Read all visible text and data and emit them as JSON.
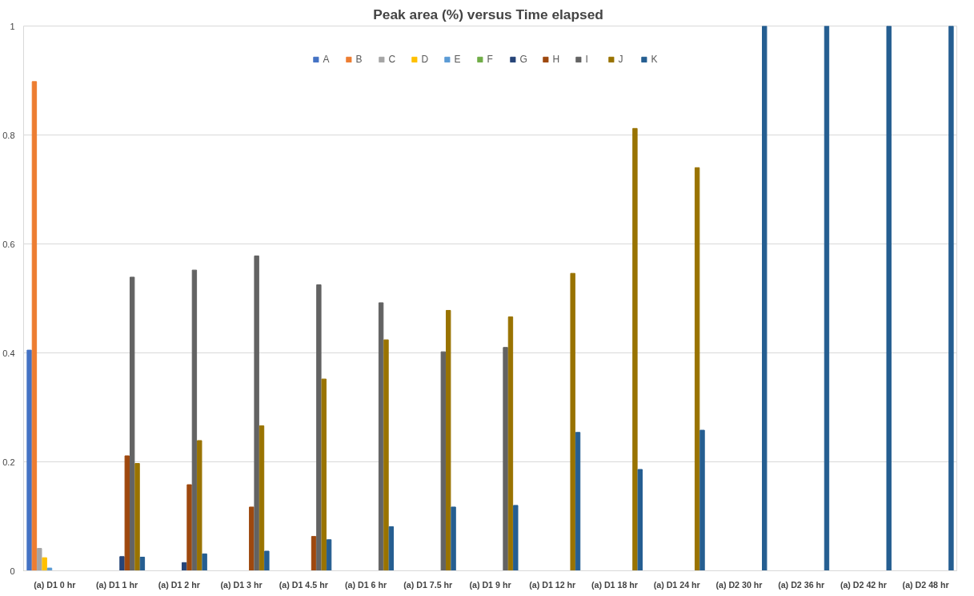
{
  "chart_data": {
    "type": "bar",
    "title": "Peak area (%)  versus Time elapsed",
    "categories": [
      "(a) D1 0 hr",
      "(a) D1 1 hr",
      "(a) D1 2 hr",
      "(a) D1 3 hr",
      "(a) D1 4.5 hr",
      "(a) D1 6 hr",
      "(a) D1 7.5 hr",
      "(a) D1 9 hr",
      "(a) D1 12 hr",
      "(a) D1 18 hr",
      "(a) D1 24 hr",
      "(a) D2 30 hr",
      "(a) D2 36 hr",
      "(a) D2 42 hr",
      "(a) D2 48 hr"
    ],
    "series": [
      {
        "name": "A",
        "color": "#4472c4",
        "values": [
          0.405,
          null,
          null,
          null,
          null,
          null,
          null,
          null,
          null,
          null,
          null,
          null,
          null,
          null,
          null
        ]
      },
      {
        "name": "B",
        "color": "#ed7d31",
        "values": [
          0.898,
          null,
          null,
          null,
          null,
          null,
          null,
          null,
          null,
          null,
          null,
          null,
          null,
          null,
          null
        ]
      },
      {
        "name": "C",
        "color": "#a5a5a5",
        "values": [
          0.041,
          null,
          null,
          null,
          null,
          null,
          null,
          null,
          null,
          null,
          null,
          null,
          null,
          null,
          null
        ]
      },
      {
        "name": "D",
        "color": "#ffc000",
        "values": [
          0.024,
          null,
          null,
          null,
          null,
          null,
          null,
          null,
          null,
          null,
          null,
          null,
          null,
          null,
          null
        ]
      },
      {
        "name": "E",
        "color": "#5b9bd5",
        "values": [
          0.005,
          null,
          null,
          null,
          null,
          null,
          null,
          null,
          null,
          null,
          null,
          null,
          null,
          null,
          null
        ]
      },
      {
        "name": "F",
        "color": "#70ad47",
        "values": [
          null,
          null,
          null,
          null,
          null,
          null,
          null,
          null,
          null,
          null,
          null,
          null,
          null,
          null,
          null
        ]
      },
      {
        "name": "G",
        "color": "#264478",
        "values": [
          null,
          0.026,
          0.015,
          null,
          null,
          null,
          null,
          null,
          null,
          null,
          null,
          null,
          null,
          null,
          null
        ]
      },
      {
        "name": "H",
        "color": "#9e480e",
        "values": [
          null,
          0.211,
          0.158,
          0.117,
          0.063,
          null,
          null,
          null,
          null,
          null,
          null,
          null,
          null,
          null,
          null
        ]
      },
      {
        "name": "I",
        "color": "#636363",
        "values": [
          null,
          0.539,
          0.552,
          0.578,
          0.525,
          0.492,
          0.402,
          0.41,
          null,
          null,
          null,
          null,
          null,
          null,
          null
        ]
      },
      {
        "name": "J",
        "color": "#997300",
        "values": [
          null,
          0.197,
          0.239,
          0.266,
          0.352,
          0.424,
          0.478,
          0.466,
          0.546,
          0.812,
          0.74,
          null,
          null,
          null,
          null
        ]
      },
      {
        "name": "K",
        "color": "#255e91",
        "values": [
          null,
          0.025,
          0.031,
          0.036,
          0.057,
          0.081,
          0.117,
          0.12,
          0.254,
          0.186,
          0.258,
          1.0,
          1.0,
          1.0,
          1.0
        ]
      }
    ],
    "ylim": [
      0,
      1
    ],
    "yticks": [
      0,
      0.2,
      0.4,
      0.6,
      0.8,
      1
    ],
    "grid": "y",
    "legend": "top"
  }
}
